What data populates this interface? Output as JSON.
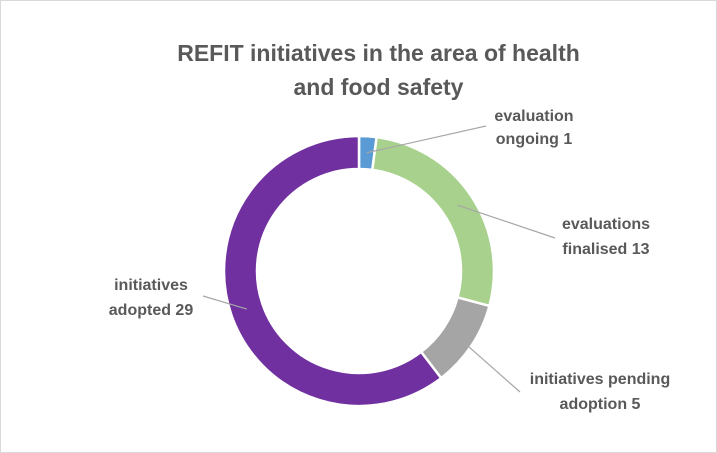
{
  "chart_data": {
    "type": "pie",
    "variant": "doughnut",
    "title_lines": [
      "REFIT initiatives in the area of health",
      "and food safety"
    ],
    "slices": [
      {
        "label_lines": [
          "evaluation",
          "ongoing 1"
        ],
        "category": "evaluation ongoing",
        "value": 1,
        "color": "#5b9bd5"
      },
      {
        "label_lines": [
          "evaluations",
          "finalised 13"
        ],
        "category": "evaluations finalised",
        "value": 13,
        "color": "#a9d18e"
      },
      {
        "label_lines": [
          "initiatives pending",
          "adoption 5"
        ],
        "category": "initiatives pending adoption",
        "value": 5,
        "color": "#a5a5a5"
      },
      {
        "label_lines": [
          "initiatives",
          "adopted 29"
        ],
        "category": "initiatives adopted",
        "value": 29,
        "color": "#7030a0"
      }
    ],
    "legend": "none",
    "data_labels": "outside-with-leader-lines"
  }
}
